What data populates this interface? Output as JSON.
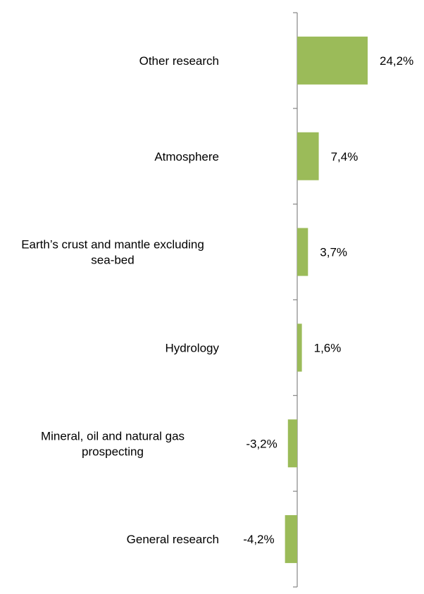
{
  "chart_data": {
    "type": "bar",
    "orientation": "horizontal",
    "categories": [
      [
        "Other research"
      ],
      [
        "Atmosphere"
      ],
      [
        "Earth’s crust and mantle excluding",
        "sea-bed"
      ],
      [
        "Hydrology"
      ],
      [
        "Mineral, oil and natural gas",
        "prospecting"
      ],
      [
        "General research"
      ]
    ],
    "values": [
      24.2,
      7.4,
      3.7,
      1.6,
      -3.2,
      -4.2
    ],
    "value_labels": [
      "24,2%",
      "7,4%",
      "3,7%",
      "1,6%",
      "-3,2%",
      "-4,2%"
    ],
    "bar_color": "#9bbb59",
    "axis_color": "#868686",
    "xlim": [
      -5,
      25
    ]
  }
}
